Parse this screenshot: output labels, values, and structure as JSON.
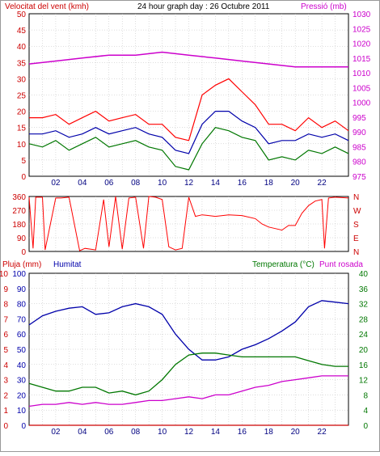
{
  "header": {
    "wind_label": "Velocitat del vent (kmh)",
    "title": "24 hour graph day : 26 Octubre 2011",
    "pressure_label": "Pressió (mb)"
  },
  "lower_header": {
    "rain_label": "Pluja (mm)",
    "humidity_label": "Humitat",
    "temp_label": "Temperatura (°C)",
    "dew_label": "Punt rosada"
  },
  "colors": {
    "red": "#ff0000",
    "darkred": "#cc0000",
    "blue": "#0000aa",
    "green": "#007700",
    "magenta": "#cc00cc",
    "grid": "#bbbbbb"
  },
  "chart_data": [
    {
      "type": "line",
      "panel": "wind-pressure",
      "x_ticks": [
        "02",
        "04",
        "06",
        "08",
        "10",
        "12",
        "14",
        "16",
        "18",
        "20",
        "22"
      ],
      "x_range": [
        0,
        24
      ],
      "y_left": {
        "label": "Velocitat del vent (kmh)",
        "range": [
          0,
          50
        ],
        "ticks": [
          0,
          5,
          10,
          15,
          20,
          25,
          30,
          35,
          40,
          45,
          50
        ]
      },
      "y_right": {
        "label": "Pressió (mb)",
        "range": [
          975,
          1030
        ],
        "ticks": [
          975,
          980,
          985,
          990,
          995,
          1000,
          1005,
          1010,
          1015,
          1020,
          1025,
          1030
        ]
      },
      "grid": true,
      "series": [
        {
          "role": "gust",
          "color": "red",
          "axis": "left",
          "x": [
            0,
            1,
            2,
            3,
            4,
            5,
            6,
            7,
            8,
            9,
            10,
            11,
            12,
            13,
            14,
            15,
            16,
            17,
            18,
            19,
            20,
            21,
            22,
            23,
            24
          ],
          "y": [
            18,
            18,
            19,
            16,
            18,
            20,
            17,
            18,
            19,
            16,
            16,
            12,
            11,
            25,
            28,
            30,
            26,
            22,
            16,
            16,
            14,
            18,
            15,
            17,
            14
          ]
        },
        {
          "role": "average",
          "color": "blue",
          "axis": "left",
          "x": [
            0,
            1,
            2,
            3,
            4,
            5,
            6,
            7,
            8,
            9,
            10,
            11,
            12,
            13,
            14,
            15,
            16,
            17,
            18,
            19,
            20,
            21,
            22,
            23,
            24
          ],
          "y": [
            13,
            13,
            14,
            12,
            13,
            15,
            13,
            14,
            15,
            13,
            12,
            8,
            7,
            16,
            20,
            20,
            17,
            15,
            10,
            11,
            11,
            13,
            12,
            13,
            11
          ]
        },
        {
          "role": "low",
          "color": "green",
          "axis": "left",
          "x": [
            0,
            1,
            2,
            3,
            4,
            5,
            6,
            7,
            8,
            9,
            10,
            11,
            12,
            13,
            14,
            15,
            16,
            17,
            18,
            19,
            20,
            21,
            22,
            23,
            24
          ],
          "y": [
            10,
            9,
            11,
            8,
            10,
            12,
            9,
            10,
            11,
            9,
            8,
            3,
            2,
            10,
            15,
            14,
            12,
            11,
            5,
            6,
            5,
            8,
            7,
            9,
            7
          ]
        },
        {
          "role": "pressure",
          "color": "magenta",
          "axis": "right",
          "x": [
            0,
            2,
            4,
            6,
            8,
            10,
            12,
            14,
            16,
            18,
            20,
            22,
            24
          ],
          "y": [
            1013,
            1014,
            1015,
            1016,
            1016,
            1017,
            1016,
            1015,
            1014,
            1013,
            1012,
            1012,
            1012
          ]
        }
      ]
    },
    {
      "type": "line",
      "panel": "wind-direction",
      "y_left": {
        "range": [
          0,
          360
        ],
        "ticks": [
          0,
          90,
          180,
          270,
          360
        ]
      },
      "y_right_labels": [
        "N",
        "W",
        "S",
        "E",
        "N"
      ],
      "grid": true,
      "series": [
        {
          "role": "direction",
          "color": "red",
          "x": [
            0,
            0.3,
            0.5,
            1.0,
            1.2,
            2.0,
            2.4,
            3.0,
            3.8,
            4.2,
            5.0,
            5.6,
            6.0,
            6.5,
            7.0,
            7.5,
            8.0,
            8.6,
            9.0,
            9.5,
            10.0,
            10.5,
            11.0,
            11.5,
            12.0,
            12.5,
            13.0,
            14.0,
            15.0,
            16.0,
            17.0,
            17.5,
            18.0,
            18.5,
            19.0,
            19.5,
            20.0,
            20.5,
            21.0,
            21.5,
            22.0,
            22.2,
            22.5,
            23.0,
            24.0
          ],
          "y": [
            355,
            20,
            355,
            355,
            10,
            350,
            350,
            355,
            5,
            20,
            10,
            340,
            30,
            360,
            15,
            350,
            355,
            20,
            360,
            355,
            340,
            30,
            10,
            20,
            355,
            230,
            240,
            230,
            240,
            235,
            215,
            180,
            160,
            150,
            140,
            170,
            170,
            250,
            300,
            330,
            340,
            20,
            350,
            355,
            350
          ]
        }
      ]
    },
    {
      "type": "line",
      "panel": "humidity-temperature",
      "x_ticks": [
        "02",
        "04",
        "06",
        "08",
        "10",
        "12",
        "14",
        "16",
        "18",
        "20",
        "22"
      ],
      "y_left_rain": {
        "label": "Pluja (mm)",
        "range": [
          0,
          10
        ],
        "ticks": [
          0,
          1,
          2,
          3,
          4,
          5,
          6,
          7,
          8,
          9,
          10
        ]
      },
      "y_left_humidity": {
        "label": "Humitat",
        "range": [
          0,
          100
        ],
        "ticks": [
          0,
          10,
          20,
          30,
          40,
          50,
          60,
          70,
          80,
          90,
          100
        ]
      },
      "y_right": {
        "label": "Temperatura (°C)",
        "range": [
          0,
          40
        ],
        "ticks": [
          0,
          4,
          8,
          12,
          16,
          20,
          24,
          28,
          32,
          36,
          40
        ]
      },
      "grid": true,
      "series": [
        {
          "role": "rain",
          "color": "darkred",
          "axis": "rain",
          "x": [
            0,
            24
          ],
          "y": [
            0,
            0
          ]
        },
        {
          "role": "humidity",
          "color": "blue",
          "axis": "humidity",
          "x": [
            0,
            1,
            2,
            3,
            4,
            5,
            6,
            7,
            8,
            9,
            10,
            11,
            12,
            13,
            14,
            15,
            16,
            17,
            18,
            19,
            20,
            21,
            22,
            23,
            24
          ],
          "y": [
            66,
            72,
            75,
            77,
            78,
            73,
            74,
            78,
            80,
            78,
            73,
            60,
            50,
            43,
            43,
            45,
            50,
            53,
            57,
            62,
            68,
            78,
            82,
            81,
            80
          ]
        },
        {
          "role": "temperature",
          "color": "green",
          "axis": "right",
          "x": [
            0,
            1,
            2,
            3,
            4,
            5,
            6,
            7,
            8,
            9,
            10,
            11,
            12,
            13,
            14,
            15,
            16,
            17,
            18,
            19,
            20,
            21,
            22,
            23,
            24
          ],
          "y": [
            11,
            10,
            9,
            9,
            10,
            10,
            8.5,
            9,
            8,
            9,
            12,
            16,
            18.5,
            19,
            19,
            18.5,
            18,
            18,
            18,
            18,
            18,
            17,
            16,
            15.5,
            15.5
          ]
        },
        {
          "role": "dew_point",
          "color": "magenta",
          "axis": "right",
          "x": [
            0,
            1,
            2,
            3,
            4,
            5,
            6,
            7,
            8,
            9,
            10,
            11,
            12,
            13,
            14,
            15,
            16,
            17,
            18,
            19,
            20,
            21,
            22,
            23,
            24
          ],
          "y": [
            5,
            5.5,
            5.5,
            6,
            5.5,
            6,
            5.5,
            5.5,
            6,
            6.5,
            6.5,
            7,
            7.5,
            7,
            8,
            8,
            9,
            10,
            10.5,
            11.5,
            12,
            12.5,
            13,
            13,
            13
          ]
        }
      ]
    }
  ]
}
